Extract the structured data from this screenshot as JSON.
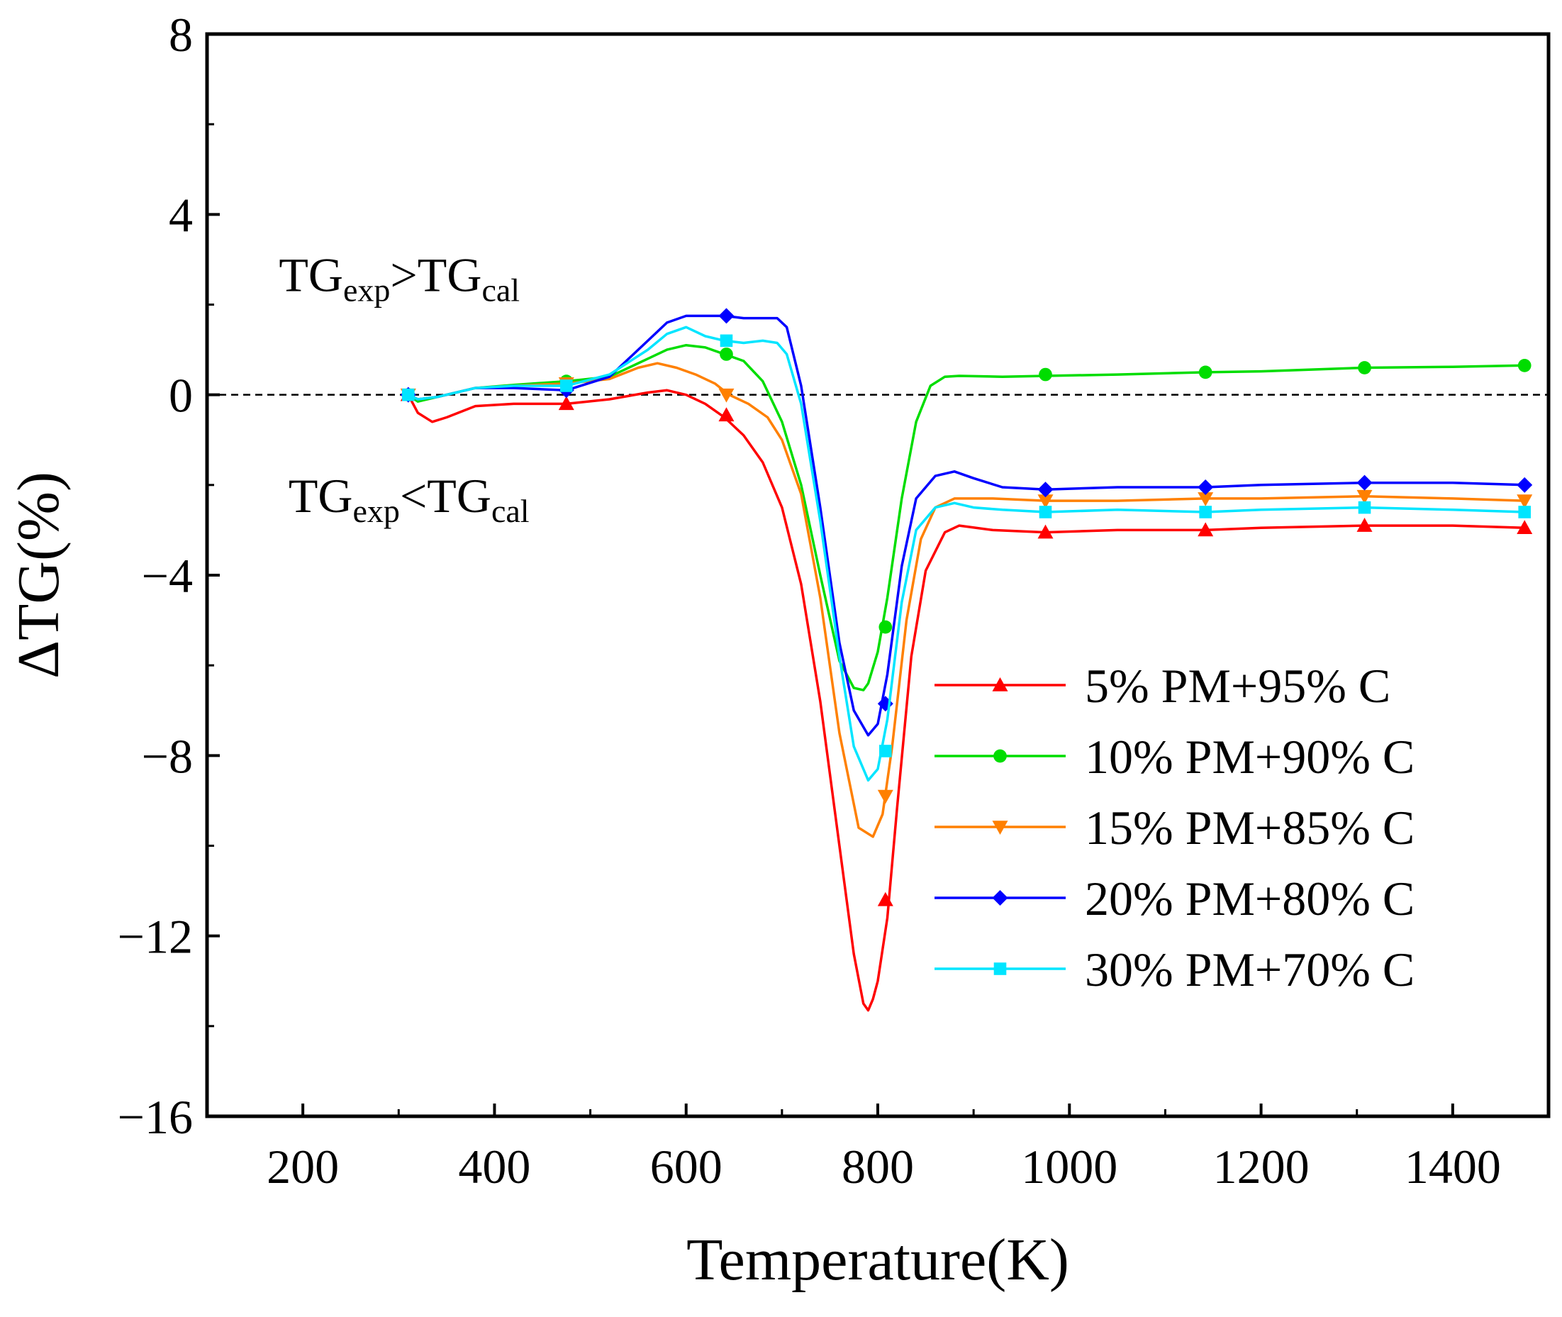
{
  "chart_data": {
    "type": "line",
    "xlabel": "Temperature(K)",
    "ylabel": "ΔTG(%)",
    "xlim": [
      100,
      1500
    ],
    "ylim": [
      -16,
      8
    ],
    "xticks": [
      200,
      400,
      600,
      800,
      1000,
      1200,
      1400
    ],
    "xtick_labels": [
      "200",
      "400",
      "600",
      "800",
      "1000",
      "1200",
      "1400"
    ],
    "yticks": [
      8,
      4,
      0,
      -4,
      -8,
      -12,
      -16
    ],
    "ytick_labels": [
      "8",
      "4",
      "0",
      "−4",
      "−8",
      "−12",
      "−16"
    ],
    "reference_line": {
      "y": 0,
      "style": "dashed"
    },
    "legend_position": "bottom-right",
    "annotations": [
      {
        "id": "above",
        "main1": "TG",
        "sub1": "exp",
        "op": ">",
        "main2": "TG",
        "sub2": "cal",
        "x": 175,
        "y": 2.3
      },
      {
        "id": "below",
        "main1": "TG",
        "sub1": "exp",
        "op": "<",
        "main2": "TG",
        "sub2": "cal",
        "x": 185,
        "y": -2.6
      }
    ],
    "series": [
      {
        "name": "5% PM+95% C",
        "color": "#ff0000",
        "marker": "triangle-up",
        "x": [
          310,
          320,
          335,
          350,
          380,
          420,
          475,
          520,
          560,
          580,
          600,
          620,
          640,
          660,
          680,
          700,
          720,
          740,
          760,
          775,
          785,
          790,
          795,
          800,
          810,
          820,
          835,
          850,
          870,
          885,
          920,
          975,
          1050,
          1142,
          1200,
          1308,
          1400,
          1475
        ],
        "y": [
          0,
          -0.4,
          -0.6,
          -0.5,
          -0.25,
          -0.2,
          -0.2,
          -0.1,
          0.05,
          0.1,
          0.0,
          -0.2,
          -0.5,
          -0.9,
          -1.5,
          -2.5,
          -4.2,
          -6.8,
          -10.0,
          -12.4,
          -13.5,
          -13.65,
          -13.4,
          -13.0,
          -11.6,
          -9.2,
          -5.8,
          -3.9,
          -3.05,
          -2.9,
          -3.0,
          -3.05,
          -3.0,
          -3.0,
          -2.95,
          -2.9,
          -2.9,
          -2.95
        ],
        "marker_x": [
          310,
          475,
          642,
          808,
          975,
          1142,
          1308,
          1475
        ],
        "marker_y": [
          0,
          -0.2,
          -0.45,
          -11.2,
          -3.05,
          -3.0,
          -2.9,
          -2.95
        ]
      },
      {
        "name": "10% PM+90% C",
        "color": "#00dd00",
        "marker": "circle",
        "x": [
          310,
          320,
          340,
          380,
          420,
          475,
          520,
          560,
          580,
          600,
          620,
          640,
          660,
          680,
          700,
          720,
          740,
          760,
          775,
          785,
          790,
          800,
          810,
          825,
          840,
          855,
          870,
          885,
          930,
          975,
          1050,
          1142,
          1200,
          1308,
          1400,
          1475
        ],
        "y": [
          0,
          -0.15,
          -0.05,
          0.15,
          0.22,
          0.3,
          0.4,
          0.8,
          1.0,
          1.1,
          1.05,
          0.9,
          0.75,
          0.3,
          -0.6,
          -2.0,
          -4.0,
          -5.9,
          -6.5,
          -6.55,
          -6.4,
          -5.7,
          -4.5,
          -2.3,
          -0.6,
          0.2,
          0.4,
          0.42,
          0.4,
          0.42,
          0.45,
          0.5,
          0.52,
          0.6,
          0.62,
          0.65
        ],
        "marker_x": [
          310,
          475,
          642,
          808,
          975,
          1142,
          1308,
          1475
        ],
        "marker_y": [
          0,
          0.3,
          0.9,
          -5.15,
          0.45,
          0.5,
          0.6,
          0.65
        ]
      },
      {
        "name": "15% PM+85% C",
        "color": "#ff8000",
        "marker": "triangle-down",
        "x": [
          310,
          320,
          340,
          380,
          420,
          475,
          520,
          550,
          570,
          590,
          610,
          630,
          645,
          665,
          685,
          700,
          720,
          740,
          760,
          780,
          795,
          805,
          815,
          830,
          845,
          860,
          880,
          920,
          975,
          1050,
          1142,
          1200,
          1308,
          1400,
          1475
        ],
        "y": [
          0,
          -0.1,
          -0.05,
          0.15,
          0.2,
          0.25,
          0.35,
          0.6,
          0.7,
          0.6,
          0.45,
          0.25,
          0.0,
          -0.2,
          -0.5,
          -1.0,
          -2.2,
          -4.5,
          -7.5,
          -9.6,
          -9.8,
          -9.3,
          -7.8,
          -5.0,
          -3.2,
          -2.5,
          -2.3,
          -2.3,
          -2.35,
          -2.35,
          -2.3,
          -2.3,
          -2.25,
          -2.3,
          -2.35
        ],
        "marker_x": [
          310,
          475,
          642,
          808,
          975,
          1142,
          1308,
          1475
        ],
        "marker_y": [
          0,
          0.25,
          0.0,
          -8.9,
          -2.35,
          -2.3,
          -2.25,
          -2.35
        ]
      },
      {
        "name": "20% PM+80% C",
        "color": "#0000ff",
        "marker": "diamond",
        "x": [
          310,
          320,
          340,
          380,
          420,
          475,
          520,
          560,
          580,
          600,
          620,
          640,
          660,
          680,
          695,
          705,
          720,
          740,
          760,
          775,
          790,
          800,
          810,
          825,
          840,
          860,
          880,
          900,
          930,
          975,
          1050,
          1142,
          1200,
          1308,
          1400,
          1475
        ],
        "y": [
          0,
          -0.1,
          -0.05,
          0.15,
          0.15,
          0.1,
          0.4,
          1.2,
          1.6,
          1.75,
          1.75,
          1.75,
          1.7,
          1.7,
          1.7,
          1.5,
          0.2,
          -2.5,
          -5.5,
          -7.0,
          -7.55,
          -7.3,
          -6.2,
          -3.8,
          -2.3,
          -1.8,
          -1.7,
          -1.85,
          -2.05,
          -2.1,
          -2.05,
          -2.05,
          -2.0,
          -1.95,
          -1.95,
          -2.0
        ],
        "marker_x": [
          310,
          475,
          642,
          808,
          975,
          1142,
          1308,
          1475
        ],
        "marker_y": [
          0,
          0.1,
          1.75,
          -6.85,
          -2.1,
          -2.05,
          -1.95,
          -2.0
        ]
      },
      {
        "name": "30% PM+70% C",
        "color": "#00e5ff",
        "marker": "square",
        "x": [
          310,
          320,
          340,
          380,
          420,
          475,
          520,
          560,
          580,
          600,
          620,
          640,
          660,
          680,
          695,
          705,
          720,
          740,
          760,
          775,
          790,
          800,
          810,
          825,
          840,
          860,
          880,
          900,
          930,
          975,
          1050,
          1142,
          1200,
          1308,
          1400,
          1475
        ],
        "y": [
          0,
          -0.1,
          -0.05,
          0.15,
          0.2,
          0.2,
          0.45,
          1.0,
          1.35,
          1.5,
          1.3,
          1.2,
          1.15,
          1.2,
          1.15,
          0.9,
          -0.2,
          -2.8,
          -5.8,
          -7.8,
          -8.55,
          -8.3,
          -7.2,
          -4.6,
          -3.0,
          -2.5,
          -2.4,
          -2.5,
          -2.55,
          -2.6,
          -2.55,
          -2.6,
          -2.55,
          -2.5,
          -2.55,
          -2.6
        ],
        "marker_x": [
          310,
          475,
          642,
          808,
          975,
          1142,
          1308,
          1475
        ],
        "marker_y": [
          0,
          0.2,
          1.2,
          -7.9,
          -2.6,
          -2.6,
          -2.5,
          -2.6
        ]
      }
    ]
  }
}
